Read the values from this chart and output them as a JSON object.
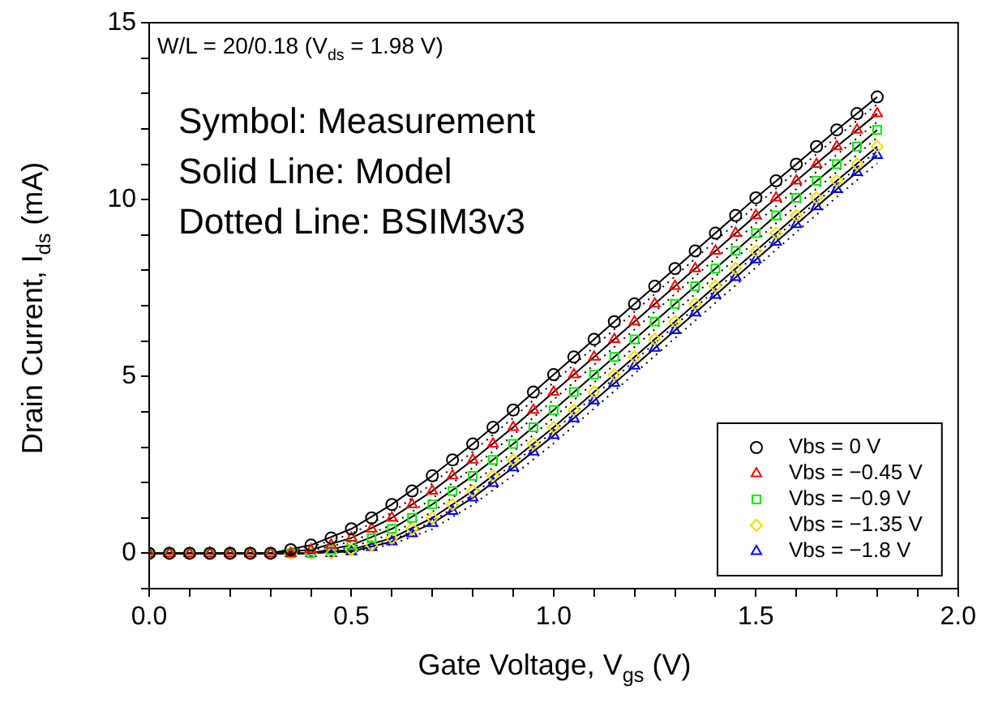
{
  "chart_data": {
    "type": "scatter",
    "xlabel": "Gate Voltage, V$_{gs}$ (V)",
    "ylabel": "Drain Current, I$_{ds}$ (mA)",
    "annotations": [
      "W/L = 20/0.18 (V$_{ds}$ = 1.98 V)",
      "Symbol: Measurement",
      "Solid Line: Model",
      "Dotted Line: BSIM3v3"
    ],
    "xlim": [
      0,
      2
    ],
    "ylim": [
      -1,
      15
    ],
    "xticks": [
      {
        "value": 0,
        "label": "0.0"
      },
      {
        "value": 0.1,
        "label": null
      },
      {
        "value": 0.2,
        "label": null
      },
      {
        "value": 0.3,
        "label": null
      },
      {
        "value": 0.4,
        "label": null
      },
      {
        "value": 0.5,
        "label": "0.5"
      },
      {
        "value": 0.6,
        "label": null
      },
      {
        "value": 0.7,
        "label": null
      },
      {
        "value": 0.8,
        "label": null
      },
      {
        "value": 0.9,
        "label": null
      },
      {
        "value": 1,
        "label": "1.0"
      },
      {
        "value": 1.1,
        "label": null
      },
      {
        "value": 1.2,
        "label": null
      },
      {
        "value": 1.3,
        "label": null
      },
      {
        "value": 1.4,
        "label": null
      },
      {
        "value": 1.5,
        "label": "1.5"
      },
      {
        "value": 1.6,
        "label": null
      },
      {
        "value": 1.7,
        "label": null
      },
      {
        "value": 1.8,
        "label": null
      },
      {
        "value": 1.9,
        "label": null
      },
      {
        "value": 2,
        "label": "2.0"
      }
    ],
    "yticks": [
      {
        "value": -1,
        "label": null
      },
      0,
      {
        "value": 1,
        "label": null
      },
      {
        "value": 2,
        "label": null
      },
      {
        "value": 3,
        "label": null
      },
      {
        "value": 4,
        "label": null
      },
      5,
      {
        "value": 6,
        "label": null
      },
      {
        "value": 7,
        "label": null
      },
      {
        "value": 8,
        "label": null
      },
      {
        "value": 9,
        "label": null
      },
      10,
      {
        "value": 11,
        "label": null
      },
      {
        "value": 12,
        "label": null
      },
      {
        "value": 13,
        "label": null
      },
      {
        "value": 14,
        "label": null
      },
      15
    ],
    "grid": false,
    "legend": "bottom right",
    "x": [
      0,
      0.05,
      0.1,
      0.15,
      0.2,
      0.25,
      0.3,
      0.35,
      0.4,
      0.45,
      0.5,
      0.55,
      0.6,
      0.65,
      0.7,
      0.75,
      0.8,
      0.85,
      0.9,
      0.95,
      1,
      1.05,
      1.1,
      1.15,
      1.2,
      1.25,
      1.3,
      1.35,
      1.4,
      1.45,
      1.5,
      1.55,
      1.6,
      1.65,
      1.7,
      1.75,
      1.8
    ],
    "series": [
      {
        "name": "Vbs = 0 V",
        "color": "#000000",
        "marker": "circle",
        "values": [
          0,
          0,
          0,
          0,
          0,
          0,
          0,
          0.1,
          0.23,
          0.43,
          0.69,
          1.0,
          1.38,
          1.76,
          2.19,
          2.64,
          3.09,
          3.56,
          4.05,
          4.56,
          5.05,
          5.55,
          6.05,
          6.55,
          7.05,
          7.55,
          8.05,
          8.55,
          9.05,
          9.55,
          10.05,
          10.53,
          11.0,
          11.5,
          11.97,
          12.43,
          12.9
        ]
      },
      {
        "name": "Vbs = −0.45 V",
        "color": "#ff0000",
        "marker": "triangle",
        "values": [
          0,
          0,
          0,
          0,
          0,
          0,
          0,
          0,
          0.1,
          0.23,
          0.43,
          0.69,
          1.0,
          1.38,
          1.76,
          2.19,
          2.64,
          3.09,
          3.56,
          4.05,
          4.56,
          5.05,
          5.55,
          6.05,
          6.55,
          7.05,
          7.55,
          8.05,
          8.55,
          9.05,
          9.55,
          10.05,
          10.53,
          11.0,
          11.5,
          11.97,
          12.43
        ]
      },
      {
        "name": "Vbs = −0.9 V",
        "color": "#00ee00",
        "marker": "square",
        "values": [
          0,
          0,
          0,
          0,
          0,
          0,
          0,
          0,
          0,
          0.1,
          0.23,
          0.43,
          0.69,
          1.0,
          1.38,
          1.76,
          2.19,
          2.64,
          3.09,
          3.56,
          4.05,
          4.56,
          5.05,
          5.55,
          6.05,
          6.55,
          7.05,
          7.55,
          8.05,
          8.55,
          9.05,
          9.55,
          10.05,
          10.53,
          11.0,
          11.5,
          11.97
        ]
      },
      {
        "name": "Vbs = −1.35 V",
        "color": "#f0e000",
        "marker": "diamond",
        "values": [
          0,
          0,
          0,
          0,
          0,
          0,
          0,
          0,
          0,
          0,
          0.1,
          0.23,
          0.43,
          0.69,
          1.0,
          1.38,
          1.76,
          2.19,
          2.64,
          3.09,
          3.56,
          4.05,
          4.56,
          5.05,
          5.55,
          6.05,
          6.55,
          7.05,
          7.55,
          8.05,
          8.55,
          9.05,
          9.55,
          10.05,
          10.53,
          11.0,
          11.5
        ]
      },
      {
        "name": "Vbs = −1.8 V",
        "color": "#0000ff",
        "marker": "triangle",
        "values": [
          0,
          0,
          0,
          0,
          0,
          0,
          0,
          0,
          0,
          0,
          0.05,
          0.17,
          0.33,
          0.56,
          0.85,
          1.19,
          1.57,
          1.98,
          2.42,
          2.87,
          3.33,
          3.81,
          4.31,
          4.81,
          5.3,
          5.8,
          6.3,
          6.8,
          7.3,
          7.8,
          8.3,
          8.8,
          9.3,
          9.8,
          10.29,
          10.77,
          11.25
        ]
      },
      {
        "type": "line",
        "color": "#000000",
        "line_style": "solid",
        "x": [
          0,
          0.1,
          0.2,
          0.3,
          0.4,
          0.5,
          0.6,
          0.7,
          0.8,
          0.9,
          1,
          1.1,
          1.2,
          1.3,
          1.4,
          1.5,
          1.6,
          1.7,
          1.8
        ],
        "values": [
          0,
          0,
          0,
          0,
          0.23,
          0.69,
          1.38,
          2.19,
          3.09,
          4.05,
          5.05,
          6.05,
          7.05,
          8.05,
          9.05,
          10.05,
          11.0,
          11.97,
          12.9
        ]
      },
      {
        "type": "line",
        "color": "#000000",
        "line_style": "solid",
        "x": [
          0,
          0.1,
          0.2,
          0.3,
          0.4,
          0.5,
          0.6,
          0.7,
          0.8,
          0.9,
          1,
          1.1,
          1.2,
          1.3,
          1.4,
          1.5,
          1.6,
          1.7,
          1.8
        ],
        "values": [
          0,
          0,
          0,
          0,
          0.1,
          0.43,
          1.0,
          1.76,
          2.64,
          3.56,
          4.56,
          5.55,
          6.55,
          7.55,
          8.55,
          9.55,
          10.53,
          11.5,
          12.43
        ]
      },
      {
        "type": "line",
        "color": "#000000",
        "line_style": "solid",
        "x": [
          0,
          0.1,
          0.2,
          0.3,
          0.4,
          0.5,
          0.6,
          0.7,
          0.8,
          0.9,
          1,
          1.1,
          1.2,
          1.3,
          1.4,
          1.5,
          1.6,
          1.7,
          1.8
        ],
        "values": [
          0,
          0,
          0,
          0,
          0,
          0.23,
          0.69,
          1.38,
          2.19,
          3.09,
          4.05,
          5.05,
          6.05,
          7.05,
          8.05,
          9.05,
          10.05,
          11.0,
          11.97
        ]
      },
      {
        "type": "line",
        "color": "#000000",
        "line_style": "solid",
        "x": [
          0,
          0.1,
          0.2,
          0.3,
          0.4,
          0.5,
          0.6,
          0.7,
          0.8,
          0.9,
          1,
          1.1,
          1.2,
          1.3,
          1.4,
          1.5,
          1.6,
          1.7,
          1.8
        ],
        "values": [
          0,
          0,
          0,
          0,
          0,
          0.1,
          0.43,
          1.0,
          1.76,
          2.64,
          3.56,
          4.56,
          5.55,
          6.55,
          7.55,
          8.55,
          9.55,
          10.53,
          11.5
        ]
      },
      {
        "type": "line",
        "color": "#000000",
        "line_style": "solid",
        "x": [
          0,
          0.1,
          0.2,
          0.3,
          0.4,
          0.5,
          0.6,
          0.7,
          0.8,
          0.9,
          1,
          1.1,
          1.2,
          1.3,
          1.4,
          1.5,
          1.6,
          1.7,
          1.8
        ],
        "values": [
          0,
          0,
          0,
          0,
          0,
          0.05,
          0.33,
          0.85,
          1.57,
          2.42,
          3.33,
          4.31,
          5.3,
          6.3,
          7.3,
          8.3,
          9.3,
          10.29,
          11.25
        ]
      },
      {
        "type": "line",
        "color": "#000000",
        "line_style": "dotted",
        "x": [
          0,
          0.1,
          0.2,
          0.3,
          0.4,
          0.5,
          0.6,
          0.7,
          0.8,
          0.9,
          1,
          1.1,
          1.2,
          1.3,
          1.4,
          1.5,
          1.6,
          1.7,
          1.8
        ],
        "values": [
          0,
          0,
          0,
          0,
          0.18,
          0.55,
          1.15,
          1.97,
          2.87,
          3.83,
          4.83,
          5.83,
          6.83,
          7.83,
          8.83,
          9.83,
          10.8,
          11.77,
          12.7
        ]
      },
      {
        "type": "line",
        "color": "#000000",
        "line_style": "dotted",
        "x": [
          0,
          0.1,
          0.2,
          0.3,
          0.4,
          0.5,
          0.6,
          0.7,
          0.8,
          0.9,
          1,
          1.1,
          1.2,
          1.3,
          1.4,
          1.5,
          1.6,
          1.7,
          1.8
        ],
        "values": [
          0,
          0,
          0,
          0,
          0.07,
          0.33,
          0.8,
          1.55,
          2.42,
          3.34,
          4.34,
          5.33,
          6.33,
          7.33,
          8.33,
          9.33,
          10.3,
          11.27,
          12.2
        ]
      },
      {
        "type": "line",
        "color": "#000000",
        "line_style": "dotted",
        "x": [
          0,
          0.1,
          0.2,
          0.3,
          0.4,
          0.5,
          0.6,
          0.7,
          0.8,
          0.9,
          1,
          1.1,
          1.2,
          1.3,
          1.4,
          1.5,
          1.6,
          1.7,
          1.8
        ],
        "values": [
          0,
          0,
          0,
          0,
          0,
          0.17,
          0.55,
          1.17,
          1.97,
          2.87,
          3.83,
          4.83,
          5.83,
          6.83,
          7.83,
          8.83,
          9.83,
          10.78,
          11.75
        ]
      },
      {
        "type": "line",
        "color": "#000000",
        "line_style": "dotted",
        "x": [
          0,
          0.1,
          0.2,
          0.3,
          0.4,
          0.5,
          0.6,
          0.7,
          0.8,
          0.9,
          1,
          1.1,
          1.2,
          1.3,
          1.4,
          1.5,
          1.6,
          1.7,
          1.8
        ],
        "values": [
          0,
          0,
          0,
          0,
          0,
          0.07,
          0.36,
          0.9,
          1.65,
          2.53,
          3.45,
          4.45,
          5.44,
          6.44,
          7.44,
          8.44,
          9.44,
          10.42,
          11.39
        ]
      },
      {
        "type": "line",
        "color": "#000000",
        "line_style": "dotted",
        "x": [
          0,
          0.1,
          0.2,
          0.3,
          0.4,
          0.5,
          0.6,
          0.7,
          0.8,
          0.9,
          1,
          1.1,
          1.2,
          1.3,
          1.4,
          1.5,
          1.6,
          1.7,
          1.8
        ],
        "values": [
          0,
          0,
          0,
          0,
          0,
          0.03,
          0.25,
          0.68,
          1.37,
          2.2,
          3.11,
          4.09,
          5.08,
          6.08,
          7.08,
          8.08,
          9.08,
          10.07,
          11.03
        ]
      }
    ]
  }
}
